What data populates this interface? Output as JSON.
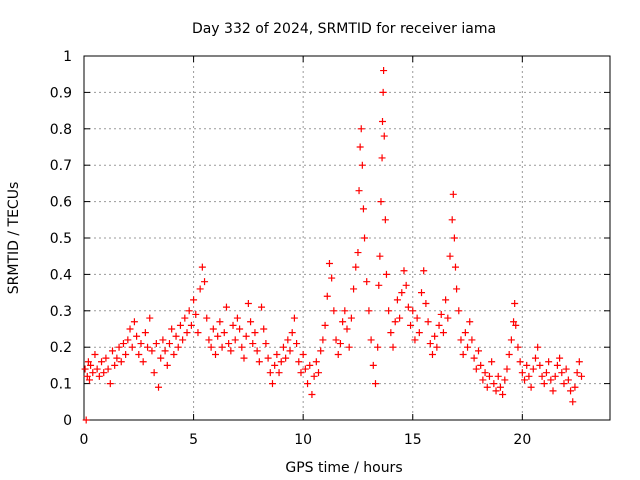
{
  "chart_data": {
    "type": "scatter",
    "title": "Day 332 of 2024, SRMTID for receiver iama",
    "xlabel": "GPS time / hours",
    "ylabel": "SRMTID / TECUs",
    "xlim": [
      0,
      24
    ],
    "ylim": [
      0,
      1
    ],
    "xticks": [
      0,
      5,
      10,
      15,
      20
    ],
    "yticks": [
      0,
      0.1,
      0.2,
      0.3,
      0.4,
      0.5,
      0.6,
      0.7,
      0.8,
      0.9,
      1
    ],
    "ytick_labels": [
      "0",
      "0.1",
      "0.2",
      "0.3",
      "0.4",
      "0.5",
      "0.6",
      "0.7",
      "0.8",
      "0.9",
      "1"
    ],
    "grid": true,
    "marker": "+",
    "series": [
      {
        "name": "SRMTID",
        "color": "#ff0000",
        "points": [
          [
            0.05,
            0.14
          ],
          [
            0.1,
            0.0
          ],
          [
            0.15,
            0.12
          ],
          [
            0.2,
            0.16
          ],
          [
            0.25,
            0.11
          ],
          [
            0.3,
            0.15
          ],
          [
            0.4,
            0.13
          ],
          [
            0.5,
            0.18
          ],
          [
            0.6,
            0.14
          ],
          [
            0.7,
            0.12
          ],
          [
            0.8,
            0.16
          ],
          [
            0.9,
            0.13
          ],
          [
            1.0,
            0.17
          ],
          [
            1.1,
            0.14
          ],
          [
            1.2,
            0.1
          ],
          [
            1.3,
            0.19
          ],
          [
            1.4,
            0.15
          ],
          [
            1.5,
            0.17
          ],
          [
            1.6,
            0.2
          ],
          [
            1.7,
            0.16
          ],
          [
            1.8,
            0.21
          ],
          [
            1.9,
            0.18
          ],
          [
            2.0,
            0.22
          ],
          [
            2.1,
            0.25
          ],
          [
            2.2,
            0.2
          ],
          [
            2.3,
            0.27
          ],
          [
            2.4,
            0.23
          ],
          [
            2.5,
            0.18
          ],
          [
            2.6,
            0.21
          ],
          [
            2.7,
            0.16
          ],
          [
            2.8,
            0.24
          ],
          [
            2.9,
            0.2
          ],
          [
            3.0,
            0.28
          ],
          [
            3.1,
            0.19
          ],
          [
            3.2,
            0.13
          ],
          [
            3.3,
            0.21
          ],
          [
            3.4,
            0.09
          ],
          [
            3.5,
            0.17
          ],
          [
            3.6,
            0.22
          ],
          [
            3.7,
            0.19
          ],
          [
            3.8,
            0.15
          ],
          [
            3.9,
            0.21
          ],
          [
            4.0,
            0.25
          ],
          [
            4.1,
            0.18
          ],
          [
            4.2,
            0.23
          ],
          [
            4.3,
            0.2
          ],
          [
            4.4,
            0.26
          ],
          [
            4.5,
            0.22
          ],
          [
            4.6,
            0.28
          ],
          [
            4.7,
            0.24
          ],
          [
            4.8,
            0.3
          ],
          [
            4.9,
            0.26
          ],
          [
            5.0,
            0.33
          ],
          [
            5.1,
            0.29
          ],
          [
            5.2,
            0.24
          ],
          [
            5.3,
            0.36
          ],
          [
            5.4,
            0.42
          ],
          [
            5.5,
            0.38
          ],
          [
            5.6,
            0.28
          ],
          [
            5.7,
            0.22
          ],
          [
            5.8,
            0.2
          ],
          [
            5.9,
            0.25
          ],
          [
            6.0,
            0.18
          ],
          [
            6.1,
            0.23
          ],
          [
            6.2,
            0.27
          ],
          [
            6.3,
            0.2
          ],
          [
            6.4,
            0.24
          ],
          [
            6.5,
            0.31
          ],
          [
            6.6,
            0.21
          ],
          [
            6.7,
            0.19
          ],
          [
            6.8,
            0.26
          ],
          [
            6.9,
            0.22
          ],
          [
            7.0,
            0.28
          ],
          [
            7.1,
            0.25
          ],
          [
            7.2,
            0.2
          ],
          [
            7.3,
            0.17
          ],
          [
            7.4,
            0.23
          ],
          [
            7.5,
            0.32
          ],
          [
            7.6,
            0.27
          ],
          [
            7.7,
            0.21
          ],
          [
            7.8,
            0.24
          ],
          [
            7.9,
            0.19
          ],
          [
            8.0,
            0.16
          ],
          [
            8.1,
            0.31
          ],
          [
            8.2,
            0.25
          ],
          [
            8.3,
            0.21
          ],
          [
            8.4,
            0.17
          ],
          [
            8.5,
            0.13
          ],
          [
            8.6,
            0.1
          ],
          [
            8.7,
            0.15
          ],
          [
            8.8,
            0.18
          ],
          [
            8.9,
            0.13
          ],
          [
            9.0,
            0.16
          ],
          [
            9.1,
            0.2
          ],
          [
            9.2,
            0.17
          ],
          [
            9.3,
            0.22
          ],
          [
            9.4,
            0.19
          ],
          [
            9.5,
            0.24
          ],
          [
            9.6,
            0.28
          ],
          [
            9.7,
            0.21
          ],
          [
            9.8,
            0.16
          ],
          [
            9.9,
            0.13
          ],
          [
            10.0,
            0.18
          ],
          [
            10.1,
            0.14
          ],
          [
            10.2,
            0.1
          ],
          [
            10.3,
            0.15
          ],
          [
            10.4,
            0.07
          ],
          [
            10.5,
            0.12
          ],
          [
            10.6,
            0.16
          ],
          [
            10.7,
            0.13
          ],
          [
            10.8,
            0.19
          ],
          [
            10.9,
            0.22
          ],
          [
            11.0,
            0.26
          ],
          [
            11.1,
            0.34
          ],
          [
            11.2,
            0.43
          ],
          [
            11.3,
            0.39
          ],
          [
            11.4,
            0.3
          ],
          [
            11.5,
            0.22
          ],
          [
            11.6,
            0.18
          ],
          [
            11.7,
            0.21
          ],
          [
            11.8,
            0.27
          ],
          [
            11.9,
            0.3
          ],
          [
            12.0,
            0.25
          ],
          [
            12.1,
            0.2
          ],
          [
            12.2,
            0.28
          ],
          [
            12.3,
            0.36
          ],
          [
            12.4,
            0.42
          ],
          [
            12.5,
            0.46
          ],
          [
            12.55,
            0.63
          ],
          [
            12.6,
            0.75
          ],
          [
            12.65,
            0.8
          ],
          [
            12.7,
            0.7
          ],
          [
            12.75,
            0.58
          ],
          [
            12.8,
            0.5
          ],
          [
            12.9,
            0.38
          ],
          [
            13.0,
            0.3
          ],
          [
            13.1,
            0.22
          ],
          [
            13.2,
            0.15
          ],
          [
            13.3,
            0.1
          ],
          [
            13.4,
            0.2
          ],
          [
            13.45,
            0.37
          ],
          [
            13.5,
            0.45
          ],
          [
            13.55,
            0.6
          ],
          [
            13.6,
            0.72
          ],
          [
            13.62,
            0.82
          ],
          [
            13.65,
            0.9
          ],
          [
            13.67,
            0.96
          ],
          [
            13.7,
            0.78
          ],
          [
            13.75,
            0.55
          ],
          [
            13.8,
            0.4
          ],
          [
            13.9,
            0.3
          ],
          [
            14.0,
            0.24
          ],
          [
            14.1,
            0.2
          ],
          [
            14.2,
            0.27
          ],
          [
            14.3,
            0.33
          ],
          [
            14.4,
            0.28
          ],
          [
            14.5,
            0.35
          ],
          [
            14.6,
            0.41
          ],
          [
            14.7,
            0.37
          ],
          [
            14.8,
            0.31
          ],
          [
            14.9,
            0.26
          ],
          [
            15.0,
            0.3
          ],
          [
            15.1,
            0.22
          ],
          [
            15.2,
            0.28
          ],
          [
            15.3,
            0.24
          ],
          [
            15.4,
            0.35
          ],
          [
            15.5,
            0.41
          ],
          [
            15.6,
            0.32
          ],
          [
            15.7,
            0.27
          ],
          [
            15.8,
            0.21
          ],
          [
            15.9,
            0.18
          ],
          [
            16.0,
            0.23
          ],
          [
            16.1,
            0.2
          ],
          [
            16.2,
            0.26
          ],
          [
            16.3,
            0.29
          ],
          [
            16.4,
            0.24
          ],
          [
            16.5,
            0.33
          ],
          [
            16.6,
            0.28
          ],
          [
            16.7,
            0.45
          ],
          [
            16.8,
            0.55
          ],
          [
            16.85,
            0.62
          ],
          [
            16.9,
            0.5
          ],
          [
            16.95,
            0.42
          ],
          [
            17.0,
            0.36
          ],
          [
            17.1,
            0.3
          ],
          [
            17.2,
            0.22
          ],
          [
            17.3,
            0.18
          ],
          [
            17.4,
            0.24
          ],
          [
            17.5,
            0.2
          ],
          [
            17.6,
            0.27
          ],
          [
            17.7,
            0.22
          ],
          [
            17.8,
            0.17
          ],
          [
            17.9,
            0.14
          ],
          [
            18.0,
            0.19
          ],
          [
            18.1,
            0.15
          ],
          [
            18.2,
            0.11
          ],
          [
            18.3,
            0.13
          ],
          [
            18.4,
            0.09
          ],
          [
            18.5,
            0.12
          ],
          [
            18.6,
            0.16
          ],
          [
            18.7,
            0.1
          ],
          [
            18.8,
            0.08
          ],
          [
            18.9,
            0.12
          ],
          [
            19.0,
            0.09
          ],
          [
            19.1,
            0.07
          ],
          [
            19.2,
            0.11
          ],
          [
            19.3,
            0.14
          ],
          [
            19.4,
            0.18
          ],
          [
            19.5,
            0.22
          ],
          [
            19.6,
            0.27
          ],
          [
            19.65,
            0.32
          ],
          [
            19.7,
            0.26
          ],
          [
            19.8,
            0.2
          ],
          [
            19.9,
            0.16
          ],
          [
            20.0,
            0.13
          ],
          [
            20.1,
            0.11
          ],
          [
            20.2,
            0.15
          ],
          [
            20.3,
            0.12
          ],
          [
            20.4,
            0.09
          ],
          [
            20.5,
            0.14
          ],
          [
            20.6,
            0.17
          ],
          [
            20.7,
            0.2
          ],
          [
            20.8,
            0.15
          ],
          [
            20.9,
            0.12
          ],
          [
            21.0,
            0.1
          ],
          [
            21.1,
            0.13
          ],
          [
            21.2,
            0.16
          ],
          [
            21.3,
            0.11
          ],
          [
            21.4,
            0.08
          ],
          [
            21.5,
            0.12
          ],
          [
            21.6,
            0.15
          ],
          [
            21.7,
            0.17
          ],
          [
            21.8,
            0.13
          ],
          [
            21.9,
            0.1
          ],
          [
            22.0,
            0.14
          ],
          [
            22.1,
            0.11
          ],
          [
            22.2,
            0.08
          ],
          [
            22.3,
            0.05
          ],
          [
            22.4,
            0.09
          ],
          [
            22.5,
            0.13
          ],
          [
            22.6,
            0.16
          ],
          [
            22.7,
            0.12
          ]
        ]
      }
    ]
  }
}
